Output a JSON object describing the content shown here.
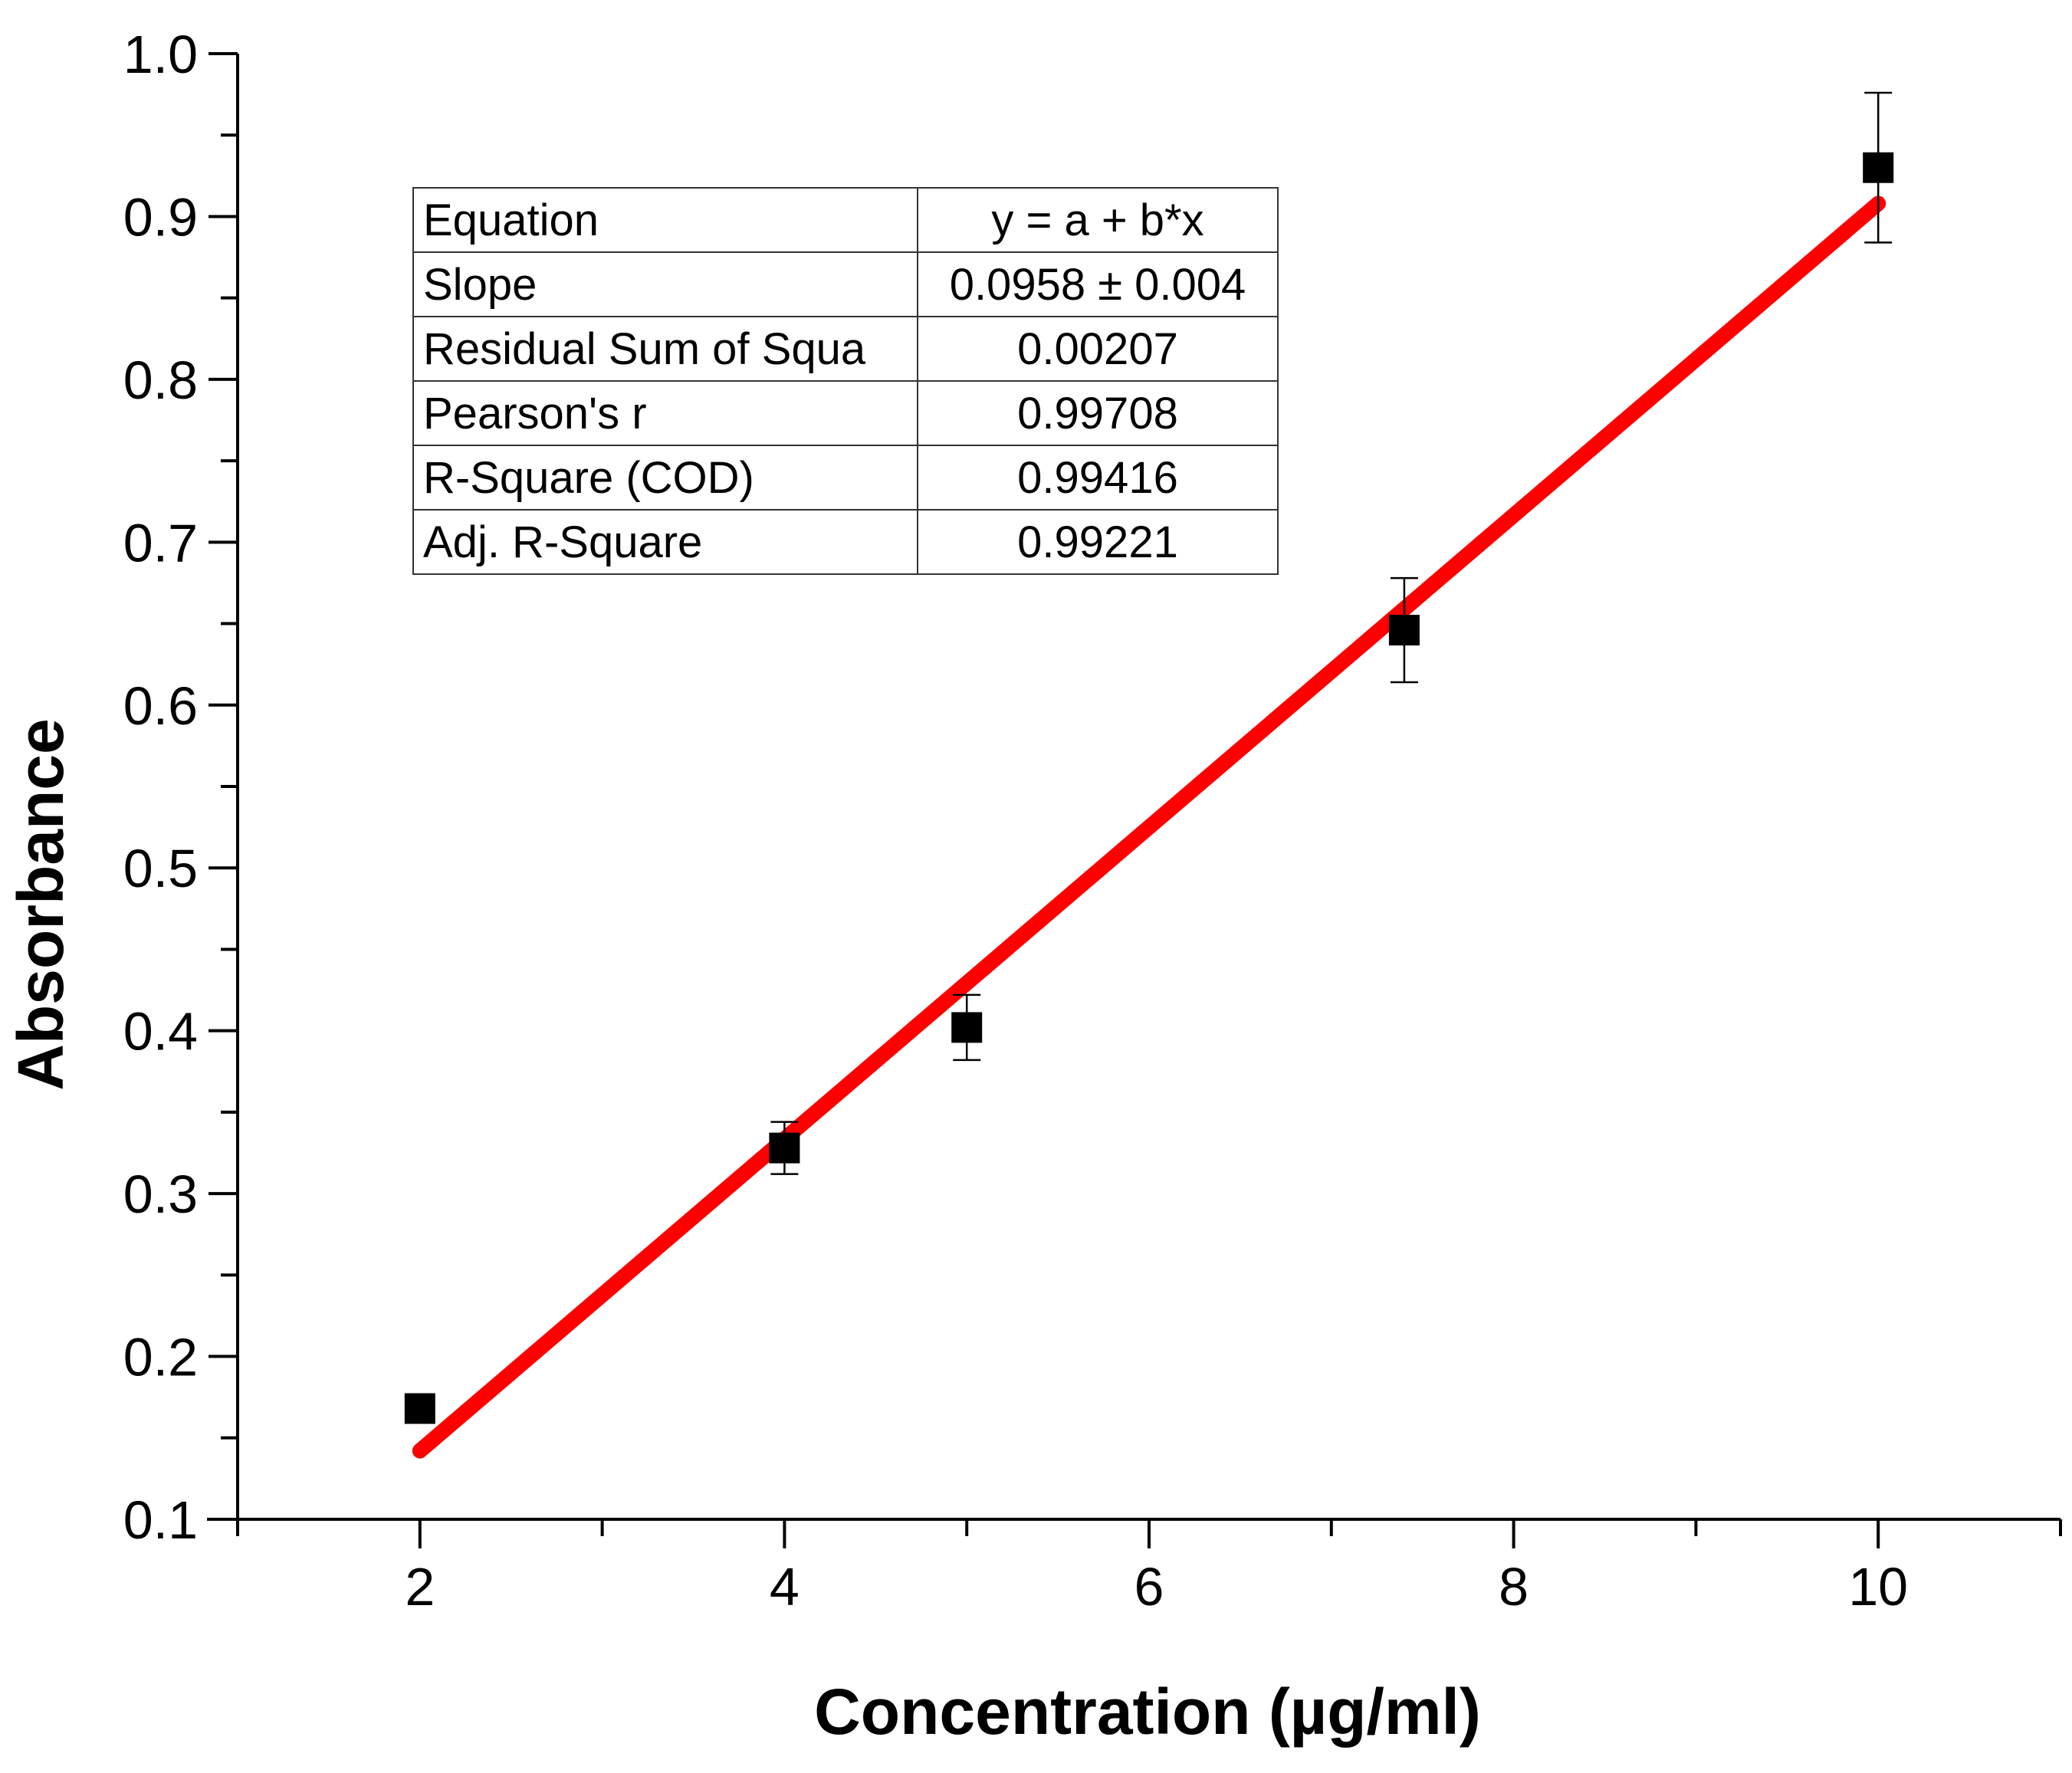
{
  "chart_data": {
    "type": "scatter",
    "title": "",
    "xlabel": "Concentration (µg/ml)",
    "ylabel": "Absorbance",
    "xlim": [
      1,
      11
    ],
    "ylim": [
      0.1,
      1.0
    ],
    "x_ticks": [
      "2",
      "4",
      "6",
      "8",
      "10"
    ],
    "y_ticks": [
      "0.1",
      "0.2",
      "0.3",
      "0.4",
      "0.5",
      "0.6",
      "0.7",
      "0.8",
      "0.9",
      "1.0"
    ],
    "series": [
      {
        "name": "Absorbance",
        "marker": "square",
        "color": "#000000",
        "x": [
          2,
          4,
          5,
          7.4,
          10
        ],
        "y": [
          0.168,
          0.328,
          0.402,
          0.646,
          0.93
        ],
        "error": [
          0.0,
          0.016,
          0.02,
          0.032,
          0.046
        ]
      }
    ],
    "fit": {
      "name": "Linear fit",
      "color": "#ff0000",
      "x": [
        2,
        10
      ],
      "y": [
        0.142,
        0.908
      ]
    },
    "fit_table": [
      {
        "label": "Equation",
        "value": "y = a + b*x"
      },
      {
        "label": "Slope",
        "value": "0.0958 ± 0.004"
      },
      {
        "label": "Residual Sum of Squa",
        "value": "0.00207"
      },
      {
        "label": "Pearson's r",
        "value": "0.99708"
      },
      {
        "label": "R-Square (COD)",
        "value": "0.99416"
      },
      {
        "label": "Adj. R-Square",
        "value": "0.99221"
      }
    ]
  }
}
